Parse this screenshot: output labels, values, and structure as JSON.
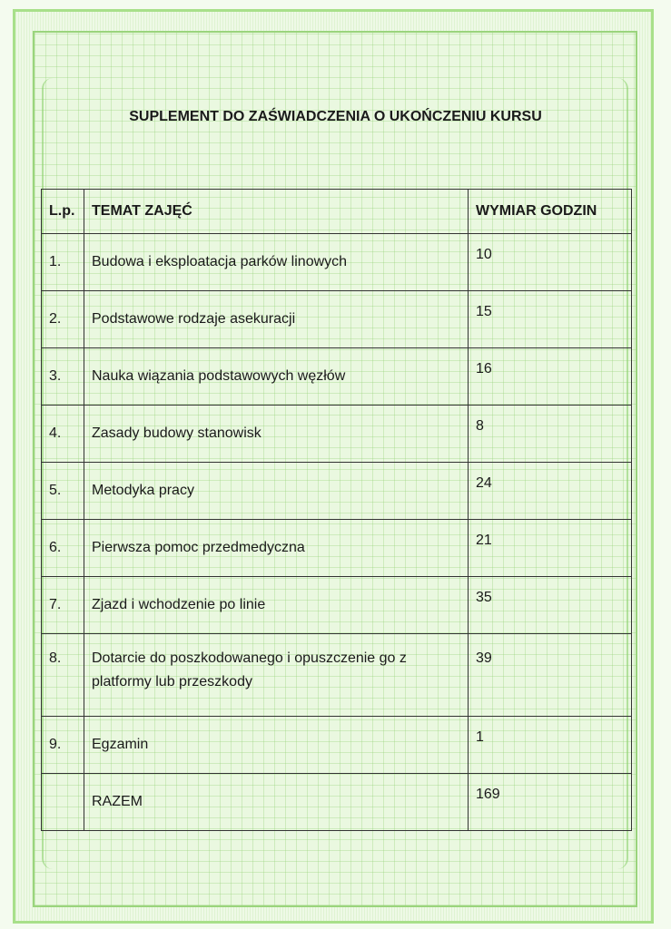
{
  "document": {
    "title": "SUPLEMENT DO ZAŚWIADCZENIA O UKOŃCZENIU KURSU",
    "table": {
      "headers": [
        "L.p.",
        "TEMAT ZAJĘĆ",
        "WYMIAR GODZIN"
      ],
      "rows": [
        {
          "lp": "1.",
          "topic": "Budowa i eksploatacja parków linowych",
          "hours": "10"
        },
        {
          "lp": "2.",
          "topic": "Podstawowe rodzaje asekuracji",
          "hours": "15"
        },
        {
          "lp": "3.",
          "topic": "Nauka wiązania podstawowych węzłów",
          "hours": "16"
        },
        {
          "lp": "4.",
          "topic": "Zasady budowy stanowisk",
          "hours": "8"
        },
        {
          "lp": "5.",
          "topic": "Metodyka pracy",
          "hours": "24"
        },
        {
          "lp": "6.",
          "topic": "Pierwsza pomoc przedmedyczna",
          "hours": "21"
        },
        {
          "lp": "7.",
          "topic": "Zjazd i wchodzenie po linie",
          "hours": "35"
        },
        {
          "lp": "8.",
          "topic": "Dotarcie do poszkodowanego i opuszczenie go z platformy lub przeszkody",
          "hours": "39"
        },
        {
          "lp": "9.",
          "topic": "Egzamin",
          "hours": "1"
        }
      ],
      "total": {
        "lp": "",
        "topic": "RAZEM",
        "hours": "169"
      }
    },
    "colors": {
      "frame": "#a8e08a",
      "background": "#eaf8e0"
    }
  }
}
